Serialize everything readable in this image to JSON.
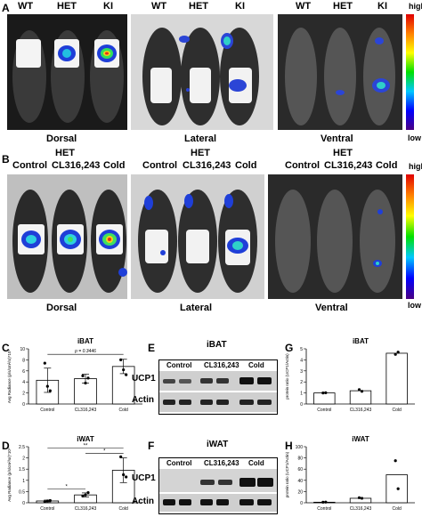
{
  "panel_labels": {
    "a": "A",
    "b": "B",
    "c": "C",
    "d": "D",
    "e": "E",
    "f": "F",
    "g": "G",
    "h": "H"
  },
  "row_a": {
    "groups": [
      {
        "labels": [
          "WT",
          "HET",
          "KI"
        ],
        "caption": "Dorsal"
      },
      {
        "labels": [
          "WT",
          "HET",
          "KI"
        ],
        "caption": "Lateral"
      },
      {
        "labels": [
          "WT",
          "HET",
          "KI"
        ],
        "caption": "Ventral"
      }
    ],
    "colorbar": {
      "high": "high",
      "low": "low"
    }
  },
  "row_b": {
    "groups": [
      {
        "header": "HET",
        "labels": [
          "Control",
          "CL316,243",
          "Cold"
        ],
        "caption": "Dorsal"
      },
      {
        "header": "HET",
        "labels": [
          "Control",
          "CL316,243",
          "Cold"
        ],
        "caption": "Lateral"
      },
      {
        "header": "HET",
        "labels": [
          "Control",
          "CL316,243",
          "Cold"
        ],
        "caption": "Ventral"
      }
    ],
    "colorbar": {
      "high": "high",
      "low": "low"
    }
  },
  "blots": {
    "e": {
      "title": "iBAT",
      "lanes": [
        "Control",
        "CL316,243",
        "Cold"
      ],
      "rows": [
        "UCP1",
        "Actin"
      ]
    },
    "f": {
      "title": "iWAT",
      "lanes": [
        "Control",
        "CL316,243",
        "Cold"
      ],
      "rows": [
        "UCP1",
        "Actin"
      ]
    }
  },
  "chart_data": [
    {
      "panel": "C",
      "type": "bar",
      "title": "iBAT",
      "ylabel": "Avg Radiance (p/s/cm²/sr)*10⁷",
      "categories": [
        "Control",
        "CL316,243",
        "Cold"
      ],
      "values": [
        4.3,
        4.6,
        6.8
      ],
      "errors": [
        2.2,
        0.8,
        1.3
      ],
      "points": [
        [
          7.4,
          3.2,
          2.4
        ],
        [
          5.1,
          3.8,
          4.7
        ],
        [
          8.0,
          6.2,
          5.3
        ]
      ],
      "ylim": [
        0,
        10
      ],
      "yticks": [
        0,
        2,
        4,
        6,
        8,
        10
      ],
      "annotation": "p = 0.3446"
    },
    {
      "panel": "D",
      "type": "bar",
      "title": "iWAT",
      "ylabel": "Avg Radiance (p/s/cm²/sr)*10⁶",
      "categories": [
        "Control",
        "CL316,243",
        "Cold"
      ],
      "values": [
        0.08,
        0.35,
        1.45
      ],
      "errors": [
        0.04,
        0.09,
        0.55
      ],
      "points": [
        [
          0.05,
          0.08,
          0.1
        ],
        [
          0.3,
          0.35,
          0.45
        ],
        [
          2.05,
          1.25,
          1.15
        ]
      ],
      "ylim": [
        0,
        2.5
      ],
      "yticks": [
        0.0,
        0.5,
        1.0,
        1.5,
        2.0,
        2.5
      ],
      "significance": [
        "*",
        "**",
        "*"
      ]
    },
    {
      "panel": "G",
      "type": "bar",
      "title": "iBAT",
      "ylabel": "protein ratio (UCP1/Actin)",
      "categories": [
        "Control",
        "CL316,243",
        "Cold"
      ],
      "values": [
        1.0,
        1.2,
        4.6
      ],
      "points": [
        [
          1.0,
          1.02
        ],
        [
          1.3,
          1.15
        ],
        [
          4.5,
          4.7
        ]
      ],
      "ylim": [
        0,
        5
      ],
      "yticks": [
        0,
        1,
        2,
        3,
        4,
        5
      ]
    },
    {
      "panel": "H",
      "type": "bar",
      "title": "iWAT",
      "ylabel": "protein ratio (UCP1/Actin)",
      "categories": [
        "Control",
        "CL316,243",
        "Cold"
      ],
      "values": [
        1,
        8,
        50
      ],
      "points": [
        [
          1,
          1.2
        ],
        [
          9,
          8
        ],
        [
          75,
          25
        ]
      ],
      "ylim": [
        0,
        100
      ],
      "yticks": [
        0,
        20,
        40,
        60,
        80,
        100
      ]
    }
  ]
}
